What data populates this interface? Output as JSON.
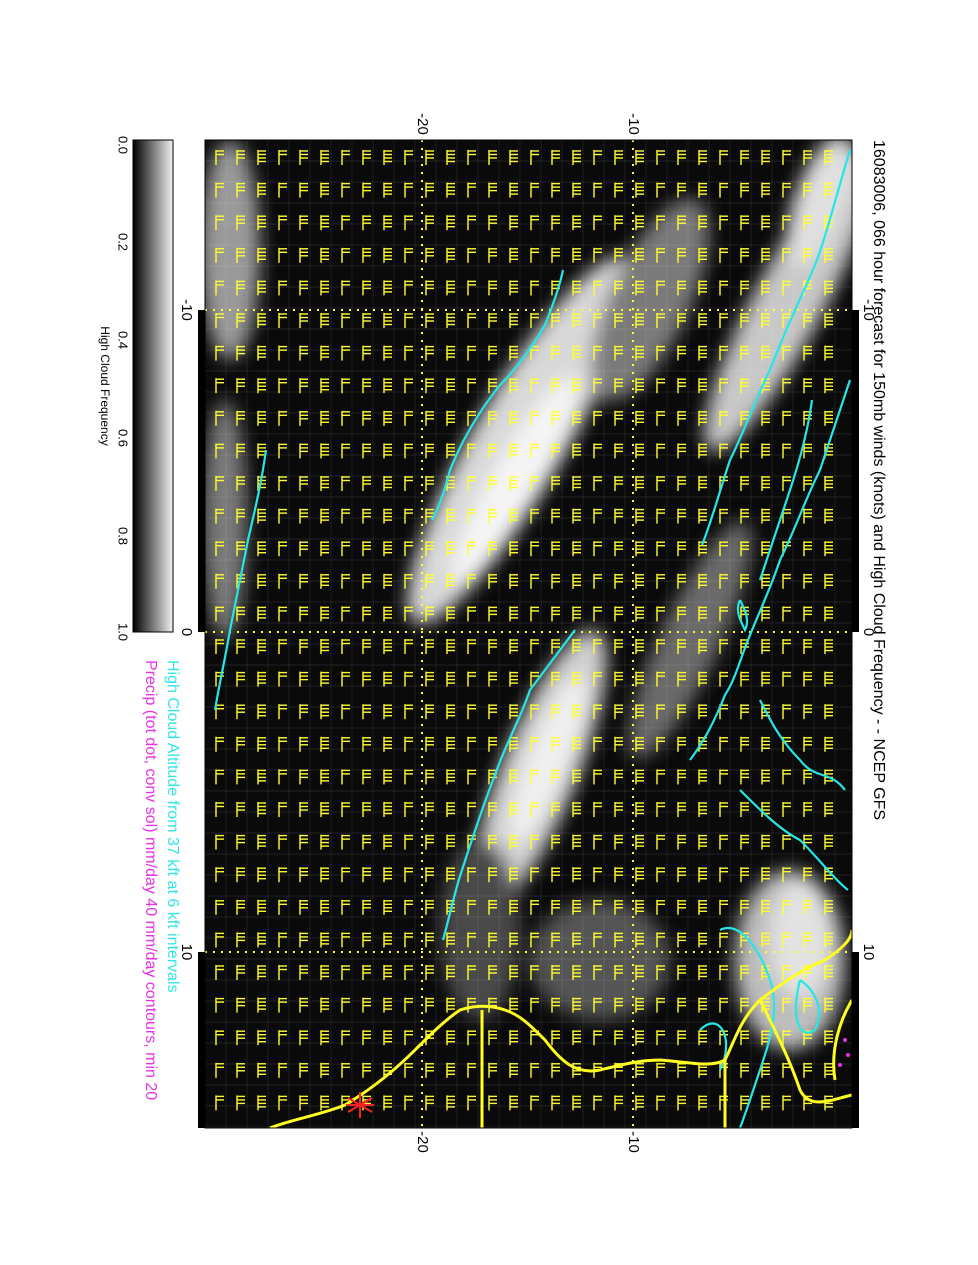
{
  "title": "16083006, 066 hour forecast for 150mb winds (knots) and High Cloud Frequency - - NCEP GFS",
  "legend_lines": [
    "High Cloud Altitude from 37 kft at 6 kft intervals",
    "Precip (tot dot, conv sol) mm/day 40 mm/day contours, min 20"
  ],
  "colorbar": {
    "label": "High Cloud Frequency",
    "ticks": [
      "0.0",
      "0.2",
      "0.4",
      "0.6",
      "0.8",
      "1.0"
    ]
  },
  "axes": {
    "top_ticks": [
      "-20",
      "-10"
    ],
    "bottom_ticks": [
      "-20",
      "-10"
    ],
    "left_ticks": [
      "-10",
      "0",
      "10"
    ],
    "right_ticks": [
      "-10",
      "0",
      "10"
    ]
  },
  "colors": {
    "background": "#ffffff",
    "map_dark": "#0a0a0a",
    "cloud_light": "#e6e6e6",
    "barb": "#ffff33",
    "contour": "#27e6e6",
    "legend_cyan": "#33e6e6",
    "legend_magenta": "#e633e6",
    "coast": "#ffff22",
    "marker": "#ff2020"
  }
}
